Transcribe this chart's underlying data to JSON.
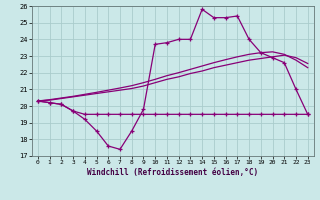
{
  "xlabel": "Windchill (Refroidissement éolien,°C)",
  "background_color": "#cbe8e8",
  "grid_color": "#aacccc",
  "line_color": "#880077",
  "hours": [
    0,
    1,
    2,
    3,
    4,
    5,
    6,
    7,
    8,
    9,
    10,
    11,
    12,
    13,
    14,
    15,
    16,
    17,
    18,
    19,
    20,
    21,
    22,
    23
  ],
  "temp": [
    20.3,
    20.2,
    20.1,
    19.7,
    19.2,
    18.5,
    17.6,
    17.4,
    18.5,
    19.8,
    23.7,
    23.8,
    24.0,
    24.0,
    25.8,
    25.3,
    25.3,
    25.4,
    24.0,
    23.2,
    22.9,
    22.6,
    21.0,
    19.5
  ],
  "windchill": [
    20.3,
    20.2,
    20.1,
    19.7,
    19.5,
    19.5,
    19.5,
    19.5,
    19.5,
    19.5,
    19.5,
    19.5,
    19.5,
    19.5,
    19.5,
    19.5,
    19.5,
    19.5,
    19.5,
    19.5,
    19.5,
    19.5,
    19.5,
    19.5
  ],
  "trend1": [
    20.3,
    20.35,
    20.45,
    20.55,
    20.65,
    20.75,
    20.85,
    20.95,
    21.05,
    21.2,
    21.4,
    21.6,
    21.75,
    21.95,
    22.1,
    22.3,
    22.45,
    22.6,
    22.75,
    22.85,
    22.95,
    23.05,
    22.9,
    22.55
  ],
  "trend2": [
    20.3,
    20.38,
    20.48,
    20.58,
    20.7,
    20.82,
    20.95,
    21.08,
    21.22,
    21.4,
    21.6,
    21.82,
    22.0,
    22.2,
    22.4,
    22.6,
    22.78,
    22.95,
    23.1,
    23.2,
    23.25,
    23.1,
    22.75,
    22.3
  ],
  "ylim": [
    17,
    26
  ],
  "yticks": [
    17,
    18,
    19,
    20,
    21,
    22,
    23,
    24,
    25,
    26
  ]
}
